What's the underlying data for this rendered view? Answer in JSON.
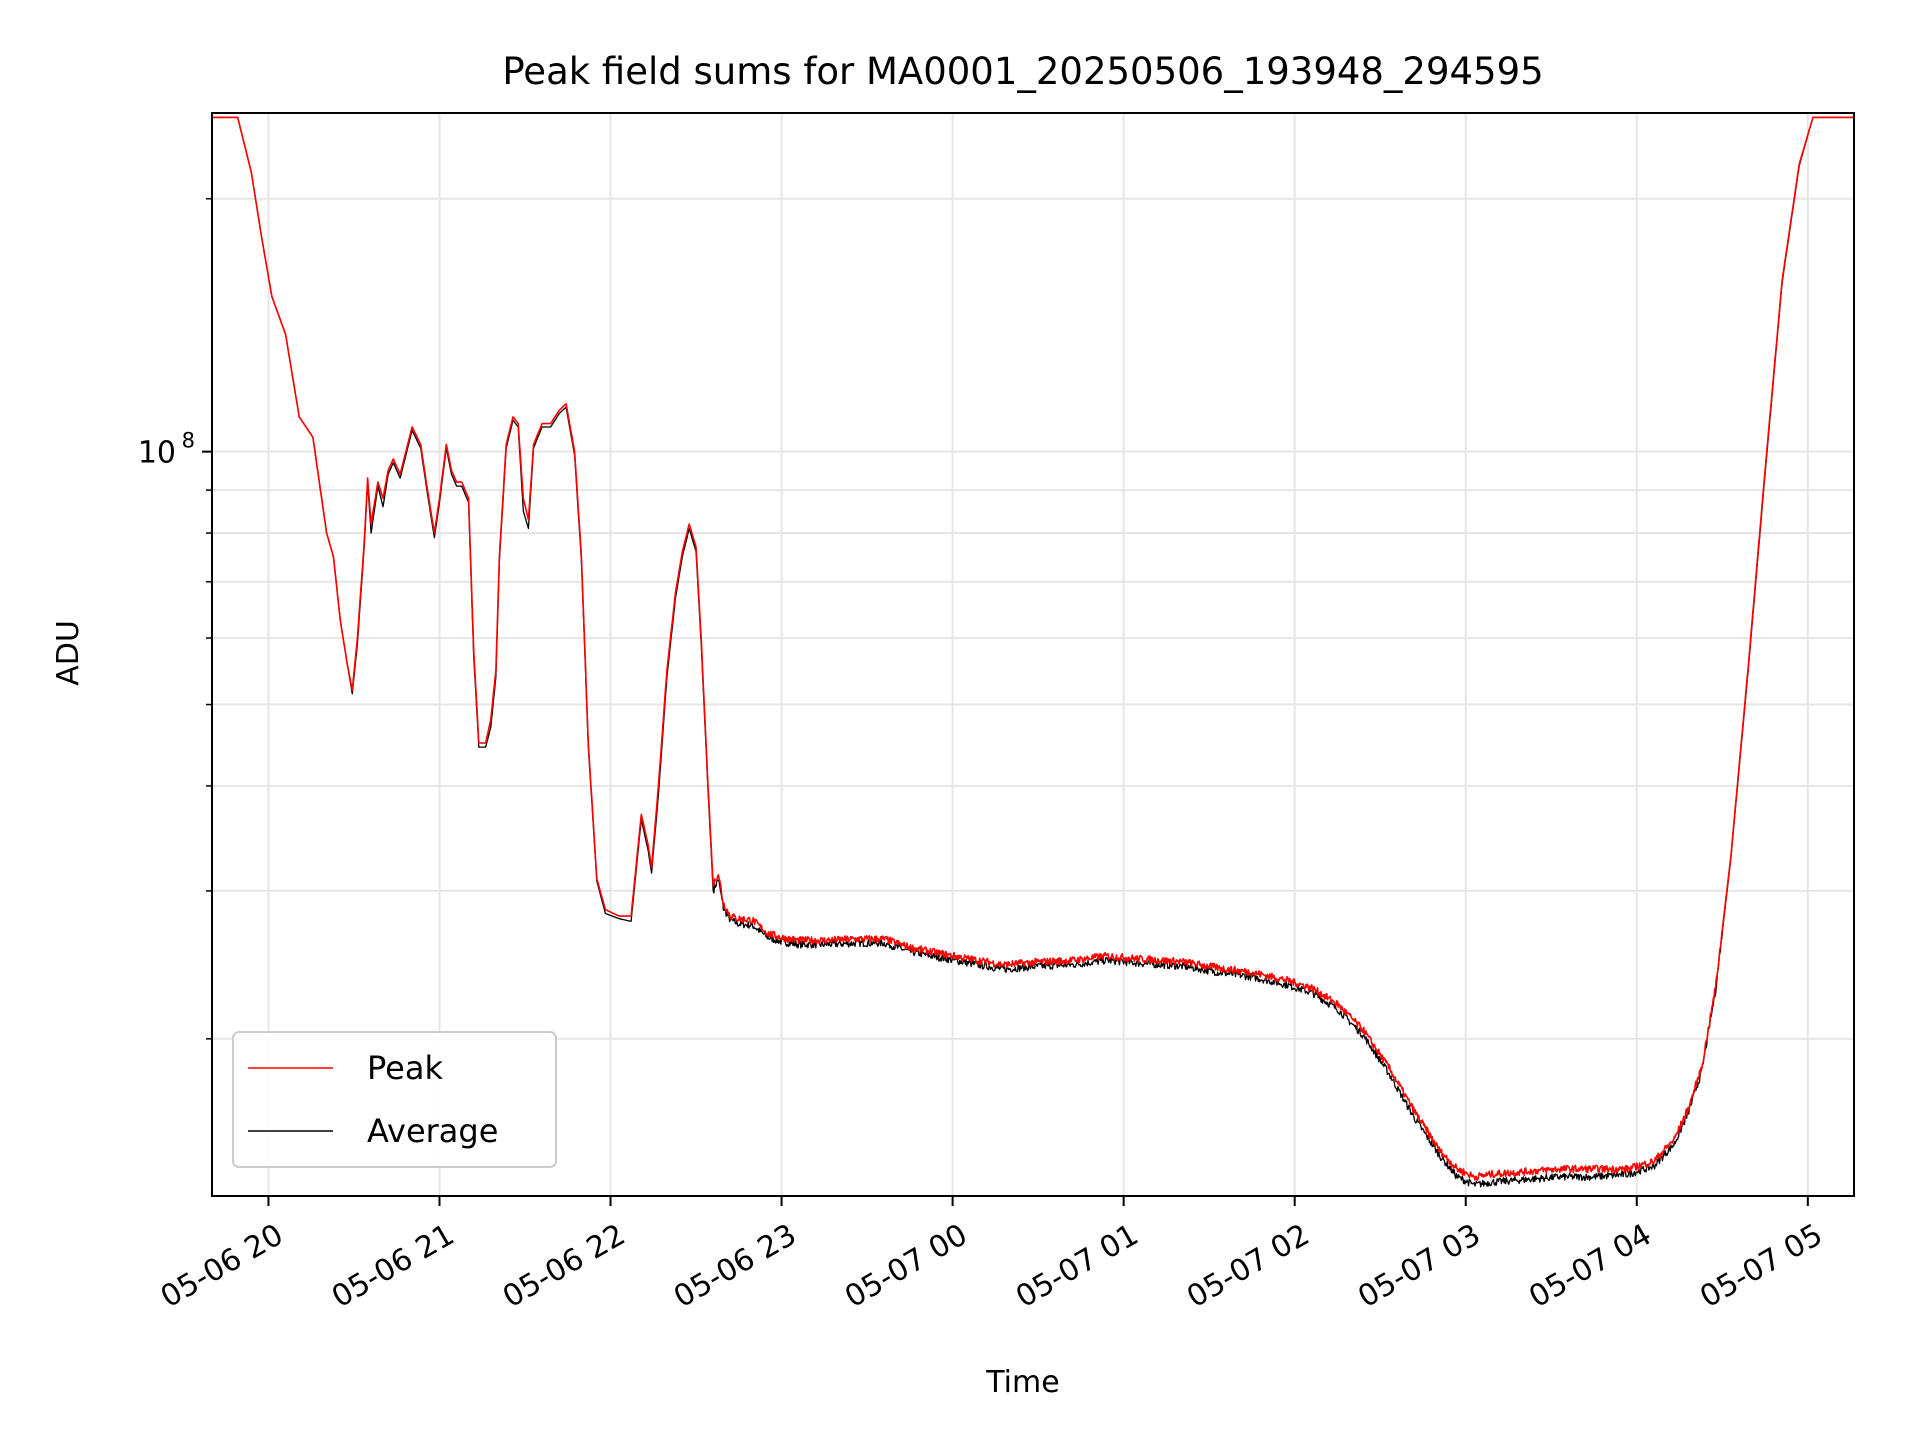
{
  "chart_data": {
    "type": "line",
    "title": "Peak field sums for MA0001_20250506_193948_294595",
    "xlabel": "Time",
    "ylabel": "ADU",
    "x_unit": "hours since 05-06 00:00",
    "xlim": [
      19.67,
      29.27
    ],
    "ylim": [
      13000000,
      253000000
    ],
    "yscale": "log",
    "grid": true,
    "x_ticks": [
      {
        "value": 20,
        "label": "05-06 20"
      },
      {
        "value": 21,
        "label": "05-06 21"
      },
      {
        "value": 22,
        "label": "05-06 22"
      },
      {
        "value": 23,
        "label": "05-06 23"
      },
      {
        "value": 24,
        "label": "05-07 00"
      },
      {
        "value": 25,
        "label": "05-07 01"
      },
      {
        "value": 26,
        "label": "05-07 02"
      },
      {
        "value": 27,
        "label": "05-07 03"
      },
      {
        "value": 28,
        "label": "05-07 04"
      },
      {
        "value": 29,
        "label": "05-07 05"
      }
    ],
    "y_major_ticks": [
      {
        "value": 100000000,
        "base": "10",
        "exp": "8"
      }
    ],
    "y_minor_ticks": [
      20000000,
      30000000,
      40000000,
      50000000,
      60000000,
      70000000,
      80000000,
      90000000,
      200000000
    ],
    "legend": {
      "position": "lower-left",
      "entries": [
        {
          "label": "Peak",
          "color": "#ff0000"
        },
        {
          "label": "Average",
          "color": "#000000"
        }
      ]
    },
    "series": [
      {
        "name": "Peak",
        "color": "#ff0000",
        "points": [
          [
            19.67,
            250000000
          ],
          [
            19.82,
            250000000
          ],
          [
            19.9,
            215000000
          ],
          [
            19.96,
            180000000
          ],
          [
            20.02,
            153000000
          ],
          [
            20.1,
            138000000
          ],
          [
            20.18,
            110000000
          ],
          [
            20.26,
            104000000
          ],
          [
            20.34,
            80000000
          ],
          [
            20.38,
            75000000
          ],
          [
            20.42,
            63000000
          ],
          [
            20.46,
            56000000
          ],
          [
            20.49,
            52000000
          ],
          [
            20.52,
            60000000
          ],
          [
            20.56,
            78000000
          ],
          [
            20.58,
            93000000
          ],
          [
            20.6,
            82000000
          ],
          [
            20.64,
            92000000
          ],
          [
            20.67,
            88000000
          ],
          [
            20.7,
            95000000
          ],
          [
            20.73,
            98000000
          ],
          [
            20.77,
            94000000
          ],
          [
            20.84,
            107000000
          ],
          [
            20.89,
            102000000
          ],
          [
            20.93,
            90000000
          ],
          [
            20.97,
            80000000
          ],
          [
            21.0,
            88000000
          ],
          [
            21.04,
            102000000
          ],
          [
            21.07,
            95000000
          ],
          [
            21.1,
            92000000
          ],
          [
            21.13,
            92000000
          ],
          [
            21.17,
            88000000
          ],
          [
            21.2,
            58000000
          ],
          [
            21.23,
            45000000
          ],
          [
            21.27,
            45000000
          ],
          [
            21.3,
            48000000
          ],
          [
            21.33,
            55000000
          ],
          [
            21.35,
            75000000
          ],
          [
            21.39,
            102000000
          ],
          [
            21.43,
            110000000
          ],
          [
            21.46,
            108000000
          ],
          [
            21.49,
            88000000
          ],
          [
            21.52,
            83000000
          ],
          [
            21.55,
            102000000
          ],
          [
            21.6,
            108000000
          ],
          [
            21.65,
            108000000
          ],
          [
            21.7,
            112000000
          ],
          [
            21.74,
            114000000
          ],
          [
            21.79,
            100000000
          ],
          [
            21.83,
            75000000
          ],
          [
            21.87,
            45000000
          ],
          [
            21.92,
            31000000
          ],
          [
            21.97,
            28500000
          ],
          [
            22.05,
            28000000
          ],
          [
            22.12,
            28000000
          ],
          [
            22.18,
            37000000
          ],
          [
            22.22,
            34000000
          ],
          [
            22.24,
            32000000
          ],
          [
            22.28,
            40000000
          ],
          [
            22.33,
            55000000
          ],
          [
            22.38,
            68000000
          ],
          [
            22.42,
            76000000
          ],
          [
            22.46,
            82000000
          ],
          [
            22.5,
            77000000
          ],
          [
            22.53,
            60000000
          ],
          [
            22.57,
            40000000
          ],
          [
            22.6,
            30500000
          ],
          [
            22.63,
            31500000
          ],
          [
            22.66,
            29000000
          ],
          [
            22.7,
            28000000
          ],
          [
            22.75,
            27800000
          ],
          [
            22.83,
            27700000
          ],
          [
            22.92,
            26700000
          ],
          [
            23.0,
            26400000
          ],
          [
            23.1,
            26200000
          ],
          [
            23.25,
            26200000
          ],
          [
            23.45,
            26300000
          ],
          [
            23.6,
            26300000
          ],
          [
            23.75,
            25700000
          ],
          [
            23.92,
            25300000
          ],
          [
            24.1,
            24900000
          ],
          [
            24.3,
            24500000
          ],
          [
            24.5,
            24700000
          ],
          [
            24.7,
            24800000
          ],
          [
            24.9,
            25100000
          ],
          [
            25.1,
            24900000
          ],
          [
            25.35,
            24700000
          ],
          [
            25.55,
            24300000
          ],
          [
            25.75,
            24000000
          ],
          [
            25.95,
            23500000
          ],
          [
            26.1,
            23000000
          ],
          [
            26.25,
            22000000
          ],
          [
            26.4,
            20500000
          ],
          [
            26.55,
            18500000
          ],
          [
            26.7,
            16400000
          ],
          [
            26.85,
            14700000
          ],
          [
            26.95,
            14000000
          ],
          [
            27.05,
            13700000
          ],
          [
            27.15,
            13800000
          ],
          [
            27.35,
            13900000
          ],
          [
            27.55,
            14000000
          ],
          [
            27.75,
            14000000
          ],
          [
            27.95,
            14000000
          ],
          [
            28.1,
            14300000
          ],
          [
            28.22,
            15200000
          ],
          [
            28.3,
            16500000
          ],
          [
            28.38,
            18500000
          ],
          [
            28.46,
            23000000
          ],
          [
            28.55,
            33000000
          ],
          [
            28.65,
            55000000
          ],
          [
            28.75,
            95000000
          ],
          [
            28.85,
            160000000
          ],
          [
            28.95,
            220000000
          ],
          [
            29.03,
            250000000
          ],
          [
            29.27,
            250000000
          ]
        ]
      },
      {
        "name": "Average",
        "color": "#000000",
        "points": [
          [
            19.67,
            250000000
          ],
          [
            19.82,
            250000000
          ],
          [
            19.9,
            215000000
          ],
          [
            19.96,
            180000000
          ],
          [
            20.02,
            153000000
          ],
          [
            20.1,
            138000000
          ],
          [
            20.18,
            110000000
          ],
          [
            20.26,
            104000000
          ],
          [
            20.34,
            80000000
          ],
          [
            20.38,
            75000000
          ],
          [
            20.42,
            63000000
          ],
          [
            20.46,
            56000000
          ],
          [
            20.49,
            51500000
          ],
          [
            20.52,
            59000000
          ],
          [
            20.56,
            77000000
          ],
          [
            20.58,
            92000000
          ],
          [
            20.6,
            80000000
          ],
          [
            20.64,
            91000000
          ],
          [
            20.67,
            86000000
          ],
          [
            20.7,
            94000000
          ],
          [
            20.73,
            97000000
          ],
          [
            20.77,
            93000000
          ],
          [
            20.84,
            106000000
          ],
          [
            20.89,
            101000000
          ],
          [
            20.93,
            89000000
          ],
          [
            20.97,
            79000000
          ],
          [
            21.0,
            87000000
          ],
          [
            21.04,
            101000000
          ],
          [
            21.07,
            94000000
          ],
          [
            21.1,
            91000000
          ],
          [
            21.13,
            91000000
          ],
          [
            21.17,
            87000000
          ],
          [
            21.2,
            57000000
          ],
          [
            21.23,
            44500000
          ],
          [
            21.27,
            44500000
          ],
          [
            21.3,
            47000000
          ],
          [
            21.33,
            54000000
          ],
          [
            21.35,
            74000000
          ],
          [
            21.39,
            101000000
          ],
          [
            21.43,
            109000000
          ],
          [
            21.46,
            107000000
          ],
          [
            21.49,
            85000000
          ],
          [
            21.52,
            81000000
          ],
          [
            21.55,
            101000000
          ],
          [
            21.6,
            107000000
          ],
          [
            21.65,
            107000000
          ],
          [
            21.7,
            111000000
          ],
          [
            21.74,
            113000000
          ],
          [
            21.79,
            99000000
          ],
          [
            21.83,
            74000000
          ],
          [
            21.87,
            44500000
          ],
          [
            21.92,
            30800000
          ],
          [
            21.97,
            28200000
          ],
          [
            22.05,
            27800000
          ],
          [
            22.12,
            27600000
          ],
          [
            22.18,
            36500000
          ],
          [
            22.22,
            33500000
          ],
          [
            22.24,
            31500000
          ],
          [
            22.28,
            39000000
          ],
          [
            22.33,
            54000000
          ],
          [
            22.38,
            67000000
          ],
          [
            22.42,
            75000000
          ],
          [
            22.46,
            81000000
          ],
          [
            22.5,
            76000000
          ],
          [
            22.53,
            59000000
          ],
          [
            22.57,
            39500000
          ],
          [
            22.6,
            30000000
          ],
          [
            22.63,
            31000000
          ],
          [
            22.66,
            28600000
          ],
          [
            22.7,
            27700000
          ],
          [
            22.75,
            27400000
          ],
          [
            22.83,
            27300000
          ],
          [
            22.92,
            26400000
          ],
          [
            23.0,
            26100000
          ],
          [
            23.1,
            25900000
          ],
          [
            23.25,
            25900000
          ],
          [
            23.45,
            26000000
          ],
          [
            23.6,
            26000000
          ],
          [
            23.75,
            25400000
          ],
          [
            23.92,
            25000000
          ],
          [
            24.1,
            24600000
          ],
          [
            24.3,
            24200000
          ],
          [
            24.5,
            24400000
          ],
          [
            24.7,
            24500000
          ],
          [
            24.9,
            24800000
          ],
          [
            25.1,
            24600000
          ],
          [
            25.35,
            24400000
          ],
          [
            25.55,
            24000000
          ],
          [
            25.75,
            23700000
          ],
          [
            25.95,
            23200000
          ],
          [
            26.1,
            22700000
          ],
          [
            26.25,
            21700000
          ],
          [
            26.4,
            20200000
          ],
          [
            26.55,
            18200000
          ],
          [
            26.7,
            16100000
          ],
          [
            26.85,
            14500000
          ],
          [
            26.95,
            13700000
          ],
          [
            27.05,
            13400000
          ],
          [
            27.15,
            13500000
          ],
          [
            27.35,
            13600000
          ],
          [
            27.55,
            13700000
          ],
          [
            27.75,
            13700000
          ],
          [
            27.95,
            13800000
          ],
          [
            28.1,
            14100000
          ],
          [
            28.22,
            15000000
          ],
          [
            28.3,
            16300000
          ],
          [
            28.38,
            18300000
          ],
          [
            28.46,
            22800000
          ],
          [
            28.55,
            32800000
          ],
          [
            28.65,
            54500000
          ],
          [
            28.75,
            94000000
          ],
          [
            28.85,
            159000000
          ],
          [
            28.95,
            219000000
          ],
          [
            29.03,
            250000000
          ],
          [
            29.27,
            250000000
          ]
        ]
      }
    ]
  }
}
